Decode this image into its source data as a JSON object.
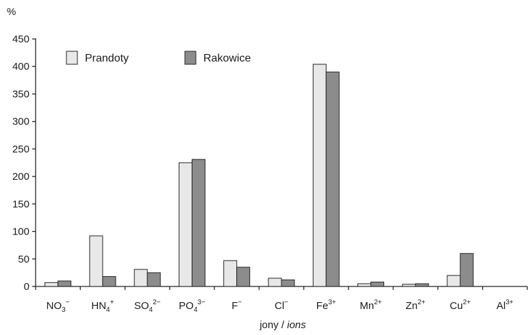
{
  "chart_data": {
    "type": "bar",
    "unit_label": "%",
    "categories": [
      {
        "base": "NO",
        "sub": "3",
        "sup": "−"
      },
      {
        "base": "HN",
        "sub": "4",
        "sup": "+"
      },
      {
        "base": "SO",
        "sub": "4",
        "sup": "2−"
      },
      {
        "base": "PO",
        "sub": "4",
        "sup": "3−"
      },
      {
        "base": "F",
        "sub": "",
        "sup": "−"
      },
      {
        "base": "Cl",
        "sub": "",
        "sup": "−"
      },
      {
        "base": "Fe",
        "sub": "",
        "sup": "3+"
      },
      {
        "base": "Mn",
        "sub": "",
        "sup": "2+"
      },
      {
        "base": "Zn",
        "sub": "",
        "sup": "2+"
      },
      {
        "base": "Cu",
        "sub": "",
        "sup": "2+"
      },
      {
        "base": "Al",
        "sub": "",
        "sup": "3+"
      }
    ],
    "series": [
      {
        "name": "Prandoty",
        "color": "#e8e8e8",
        "values": [
          7,
          92,
          31,
          225,
          47,
          15,
          404,
          5,
          4,
          20,
          0
        ]
      },
      {
        "name": "Rakowice",
        "color": "#8c8c8c",
        "values": [
          10,
          18,
          25,
          231,
          35,
          12,
          390,
          8,
          5,
          60,
          0
        ]
      }
    ],
    "ylim": [
      0,
      450
    ],
    "yticks": [
      0,
      50,
      100,
      150,
      200,
      250,
      300,
      350,
      400,
      450
    ],
    "xlabel_main": "jony / ",
    "xlabel_italic": "ions",
    "legend_position": "top-left",
    "grid": false
  }
}
